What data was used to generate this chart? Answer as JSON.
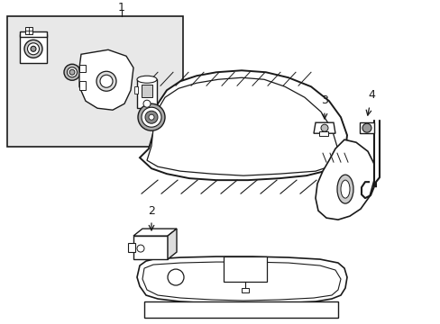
{
  "bg_color": "#ffffff",
  "box_bg": "#e8e8e8",
  "line_color": "#1a1a1a",
  "label1": "1",
  "label2": "2",
  "label3": "3",
  "label4": "4",
  "figsize": [
    4.89,
    3.6
  ],
  "dpi": 100
}
